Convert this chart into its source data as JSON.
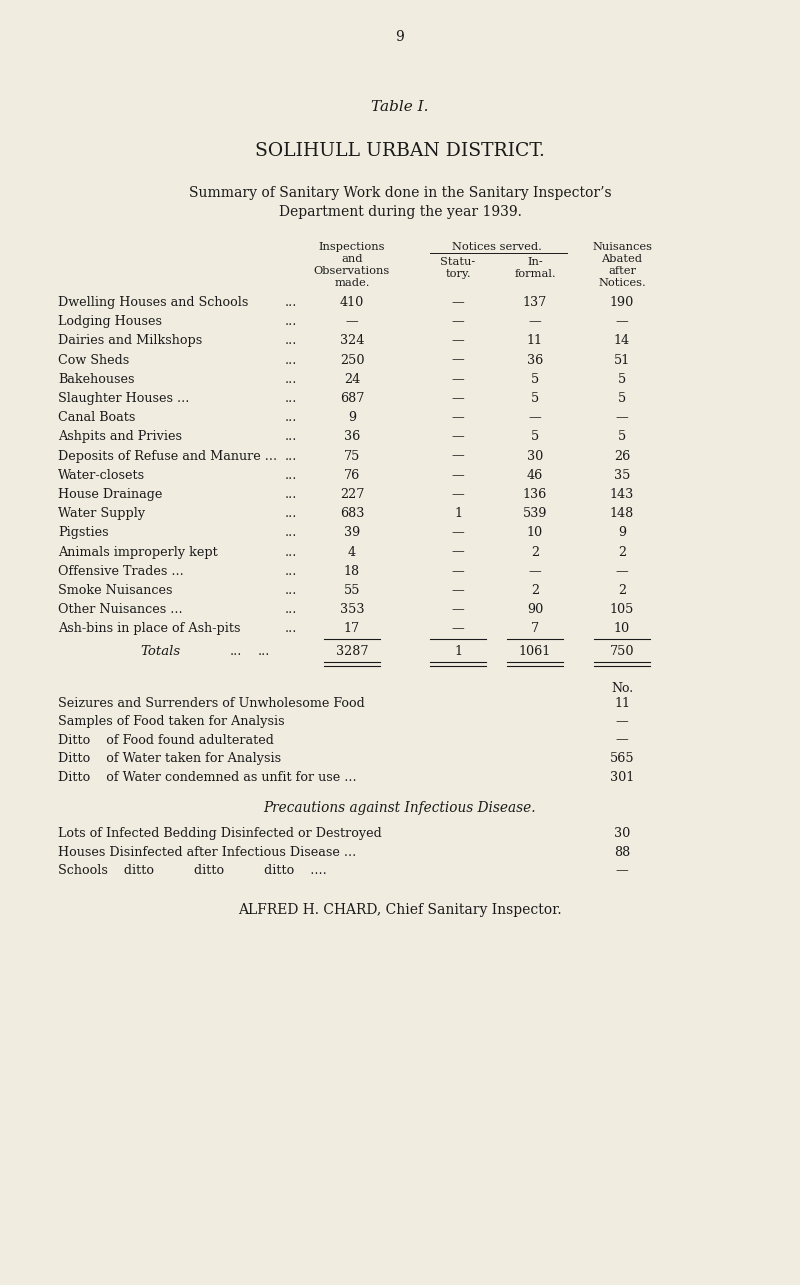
{
  "bg_color": "#f0ece0",
  "page_number": "9",
  "table_label": "Table I.",
  "title1": "SOLIHULL URBAN DISTRICT.",
  "title2": "Summary of Sanitary Work done in the Sanitary Inspector’s",
  "title3": "Department during the year 1939.",
  "rows": [
    [
      "Dwelling Houses and Schools",
      "...",
      "410",
      "—",
      "137",
      "190"
    ],
    [
      "Lodging Houses",
      "...",
      "—",
      "—",
      "—",
      "—"
    ],
    [
      "Dairies and Milkshops",
      "...",
      "324",
      "—",
      "11",
      "14"
    ],
    [
      "Cow Sheds",
      "...",
      "250",
      "—",
      "36",
      "51"
    ],
    [
      "Bakehouses",
      "...",
      "24",
      "—",
      "5",
      "5"
    ],
    [
      "Slaughter Houses ...",
      "...",
      "687",
      "—",
      "5",
      "5"
    ],
    [
      "Canal Boats",
      "...",
      "9",
      "—",
      "—",
      "—"
    ],
    [
      "Ashpits and Privies",
      "...",
      "36",
      "—",
      "5",
      "5"
    ],
    [
      "Deposits of Refuse and Manure ...",
      "...",
      "75",
      "—",
      "30",
      "26"
    ],
    [
      "Water-closets",
      "...",
      "76",
      "—",
      "46",
      "35"
    ],
    [
      "House Drainage",
      "...",
      "227",
      "—",
      "136",
      "143"
    ],
    [
      "Water Supply",
      "...",
      "683",
      "1",
      "539",
      "148"
    ],
    [
      "Pigsties",
      "...",
      "39",
      "—",
      "10",
      "9"
    ],
    [
      "Animals improperly kept",
      "...",
      "4",
      "—",
      "2",
      "2"
    ],
    [
      "Offensive Trades ...",
      "...",
      "18",
      "—",
      "—",
      "—"
    ],
    [
      "Smoke Nuisances",
      "...",
      "55",
      "—",
      "2",
      "2"
    ],
    [
      "Other Nuisances ...",
      "...",
      "353",
      "—",
      "90",
      "105"
    ],
    [
      "Ash-bins in place of Ash-pits",
      "...",
      "17",
      "—",
      "7",
      "10"
    ]
  ],
  "totals_row": [
    "Totals",
    "...",
    "3287",
    "1",
    "1061",
    "750"
  ],
  "extra_items": [
    [
      "Seizures and Surrenders of Unwholesome Food",
      "11"
    ],
    [
      "Samples of Food taken for Analysis",
      "—"
    ],
    [
      "Ditto    of Food found adulterated",
      "—"
    ],
    [
      "Ditto    of Water taken for Analysis",
      "565"
    ],
    [
      "Ditto    of Water condemned as unfit for use ...",
      "301"
    ]
  ],
  "precautions_header": "Precautions against Infectious Disease.",
  "precautions_items": [
    [
      "Lots of Infected Bedding Disinfected or Destroyed",
      "30"
    ],
    [
      "Houses Disinfected after Infectious Disease ...",
      "88"
    ],
    [
      "Schools    ditto          ditto          ditto    ....",
      "—"
    ]
  ],
  "footer": "ALFRED H. CHARD, Chief Sanitary Inspector."
}
